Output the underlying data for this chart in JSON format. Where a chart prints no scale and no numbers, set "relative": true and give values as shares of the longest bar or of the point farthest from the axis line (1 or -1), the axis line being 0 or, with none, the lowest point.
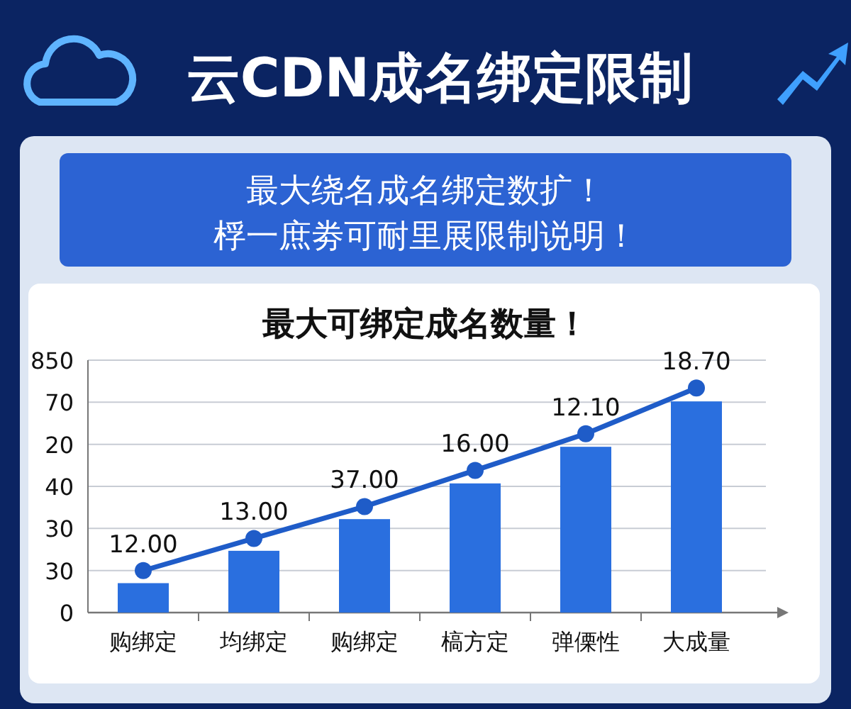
{
  "chart_data": {
    "type": "bar",
    "title": "云CDN成名绑定限制",
    "subtitle": "最大绕名成名绑定数扩！",
    "relative": true,
    "annotations": [
      "桴一庶劵可耐里展限制说明！",
      "最大可绑定成名数量！",
      "850",
      "70",
      "20",
      "40",
      "30",
      "30",
      "0",
      "12.00",
      "13.00",
      "37.00",
      "16.00",
      "12.10",
      "18.70"
    ],
    "categories": [
      "购绑定",
      "均绑定",
      "购绑定",
      "槁方定",
      "弹傈性",
      "大成量"
    ],
    "series": [
      {
        "type": "bar",
        "color": "#2a6fdf",
        "values": [
          0.131,
          0.275,
          0.416,
          0.575,
          0.738,
          0.94
        ]
      },
      {
        "type": "line",
        "color": "#1f5cc8",
        "values": [
          0.187,
          0.33,
          0.472,
          0.633,
          0.796,
          1.0
        ]
      }
    ],
    "grid": "y",
    "marker": "circle"
  }
}
